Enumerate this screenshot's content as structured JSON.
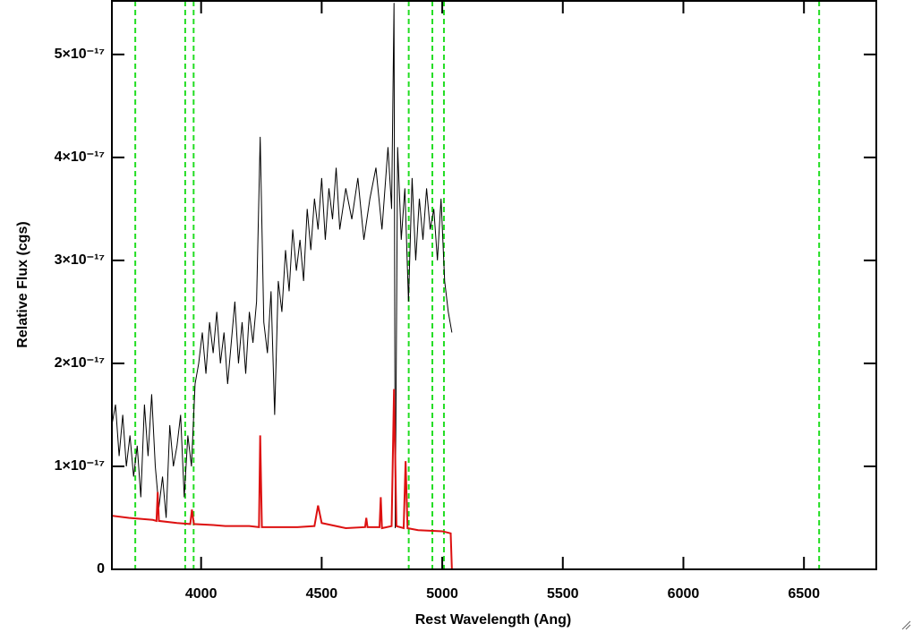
{
  "chart_data": {
    "type": "line",
    "x_label": "Rest Wavelength (Ang)",
    "y_label": "Relative Flux (cgs)",
    "xlim": [
      3630,
      6800
    ],
    "ylim": [
      0,
      5.52e-17
    ],
    "xticks": [
      4000,
      4500,
      5000,
      5500,
      6000,
      6500
    ],
    "yticks": [
      0,
      {
        "value": 1e-17,
        "label": "1×10⁻¹⁷"
      },
      {
        "value": 2e-17,
        "label": "2×10⁻¹⁷"
      },
      {
        "value": 3e-17,
        "label": "3×10⁻¹⁷"
      },
      {
        "value": 4e-17,
        "label": "4×10⁻¹⁷"
      },
      {
        "value": 5e-17,
        "label": "5×10⁻¹⁷"
      }
    ],
    "reference_lines": {
      "x": [
        3727,
        3934,
        3969,
        4861,
        4959,
        5007,
        6563
      ],
      "color": "#22dd22"
    },
    "series": [
      {
        "color": "#000000",
        "x": [
          3630,
          3645,
          3660,
          3675,
          3690,
          3705,
          3720,
          3735,
          3750,
          3765,
          3780,
          3795,
          3810,
          3825,
          3840,
          3855,
          3870,
          3885,
          3900,
          3915,
          3930,
          3945,
          3960,
          3975,
          3990,
          4005,
          4020,
          4035,
          4050,
          4065,
          4080,
          4095,
          4110,
          4125,
          4140,
          4155,
          4170,
          4185,
          4200,
          4215,
          4230,
          4245,
          4260,
          4275,
          4290,
          4305,
          4320,
          4335,
          4350,
          4365,
          4380,
          4395,
          4410,
          4425,
          4440,
          4455,
          4470,
          4485,
          4500,
          4515,
          4530,
          4545,
          4560,
          4575,
          4600,
          4625,
          4650,
          4675,
          4700,
          4725,
          4750,
          4775,
          4790,
          4800,
          4805,
          4815,
          4830,
          4845,
          4860,
          4875,
          4890,
          4905,
          4920,
          4935,
          4950,
          4965,
          4980,
          4995,
          5010,
          5025,
          5040
        ],
        "values": [
          1.4e-17,
          1.6e-17,
          1.1e-17,
          1.5e-17,
          1e-17,
          1.3e-17,
          9e-18,
          1.2e-17,
          7e-18,
          1.6e-17,
          1.1e-17,
          1.7e-17,
          1e-17,
          6e-18,
          9e-18,
          5e-18,
          1.4e-17,
          1e-17,
          1.2e-17,
          1.5e-17,
          7e-18,
          1.3e-17,
          1e-17,
          1.8e-17,
          2e-17,
          2.3e-17,
          1.9e-17,
          2.4e-17,
          2.1e-17,
          2.5e-17,
          2e-17,
          2.3e-17,
          1.8e-17,
          2.2e-17,
          2.6e-17,
          2e-17,
          2.4e-17,
          1.9e-17,
          2.5e-17,
          2.2e-17,
          2.6e-17,
          4.2e-17,
          2.4e-17,
          2.1e-17,
          2.7e-17,
          1.5e-17,
          2.8e-17,
          2.5e-17,
          3.1e-17,
          2.7e-17,
          3.3e-17,
          2.9e-17,
          3.2e-17,
          2.8e-17,
          3.5e-17,
          3.1e-17,
          3.6e-17,
          3.3e-17,
          3.8e-17,
          3.2e-17,
          3.7e-17,
          3.4e-17,
          3.9e-17,
          3.3e-17,
          3.7e-17,
          3.4e-17,
          3.8e-17,
          3.2e-17,
          3.6e-17,
          3.9e-17,
          3.3e-17,
          4.1e-17,
          3.5e-17,
          5.5e-17,
          4e-18,
          4.1e-17,
          3.2e-17,
          3.7e-17,
          2.6e-17,
          3.8e-17,
          3e-17,
          3.6e-17,
          3.2e-17,
          3.7e-17,
          3.3e-17,
          3.5e-17,
          3e-17,
          3.6e-17,
          2.8e-17,
          2.5e-17,
          2.3e-17
        ]
      },
      {
        "color": "#dd1111",
        "x": [
          3630,
          3700,
          3800,
          3815,
          3820,
          3825,
          3900,
          3955,
          3962,
          3970,
          4050,
          4100,
          4200,
          4240,
          4245,
          4252,
          4300,
          4400,
          4470,
          4485,
          4500,
          4600,
          4680,
          4685,
          4690,
          4740,
          4745,
          4750,
          4790,
          4800,
          4810,
          4840,
          4848,
          4856,
          4900,
          5000,
          5035,
          5040,
          6800
        ],
        "values": [
          5.2e-18,
          5e-18,
          4.8e-18,
          4.7e-18,
          7.5e-18,
          4.7e-18,
          4.5e-18,
          4.4e-18,
          5.8e-18,
          4.4e-18,
          4.3e-18,
          4.2e-18,
          4.2e-18,
          4.1e-18,
          1.3e-17,
          4.1e-18,
          4.1e-18,
          4.1e-18,
          4.2e-18,
          6.2e-18,
          4.5e-18,
          4e-18,
          4.1e-18,
          5e-18,
          4.1e-18,
          4.1e-18,
          7e-18,
          4e-18,
          4.2e-18,
          1.75e-17,
          4.2e-18,
          4e-18,
          1.05e-17,
          4e-18,
          3.8e-18,
          3.7e-18,
          3.5e-18,
          0,
          0
        ]
      }
    ]
  }
}
